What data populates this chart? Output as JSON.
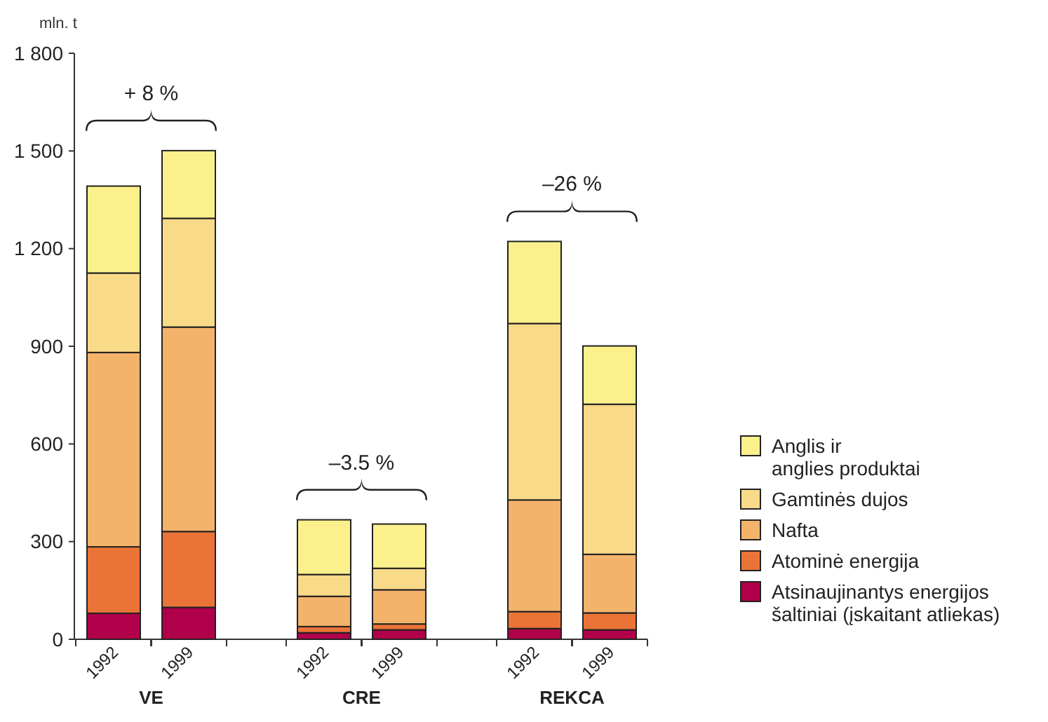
{
  "chart_data": {
    "type": "bar",
    "stacked": true,
    "ylabel": "mln. t",
    "categories": [
      "1992",
      "1999",
      "1992",
      "1999",
      "1992",
      "1999"
    ],
    "series": [
      {
        "name": "Atsinaujinantys energijos\nšaltiniai (įskaitant atliekas)",
        "color": "#b0004a",
        "values": [
          80,
          98,
          20,
          29,
          33,
          29
        ]
      },
      {
        "name": "Atominė energija",
        "color": "#ea7437",
        "values": [
          204,
          233,
          19,
          18,
          52,
          52
        ]
      },
      {
        "name": "Nafta",
        "color": "#f4b36b",
        "values": [
          597,
          628,
          93,
          105,
          343,
          180
        ]
      },
      {
        "name": "Gamtinės dujos",
        "color": "#f9da88",
        "values": [
          244,
          334,
          67,
          66,
          542,
          461
        ]
      },
      {
        "name": "Anglis ir\nanglies produktai",
        "color": "#fcf08c",
        "values": [
          267,
          208,
          168,
          136,
          252,
          179
        ]
      }
    ],
    "ylim": [
      0,
      1800
    ],
    "yticks": [
      0,
      300,
      600,
      900,
      {
        "value": 1200,
        "label": "1 200"
      },
      {
        "value": 1500,
        "label": "1 500"
      },
      {
        "value": 1800,
        "label": "1 800"
      }
    ],
    "grid": false,
    "legend": "right",
    "annotations": [
      "VE",
      "CRE",
      "REKCA",
      "+ 8 %",
      "–3.5 %",
      "–26 %"
    ]
  }
}
